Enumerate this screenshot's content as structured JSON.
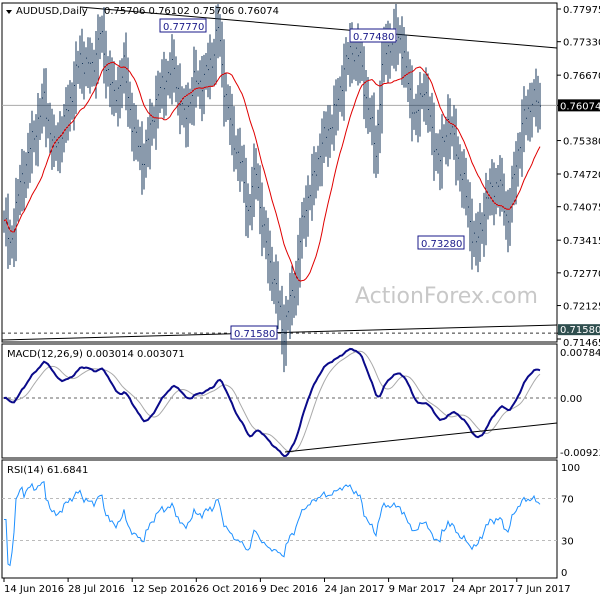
{
  "chart_data": {
    "type": "ohlc",
    "symbol": "AUDUSD,Daily",
    "ohlc_header": "0.75706 0.76102 0.75706 0.76074",
    "last_price": "0.76074",
    "y_ticks": [
      "0.77975",
      "0.77330",
      "0.76670",
      "0.76074",
      "0.75380",
      "0.74720",
      "0.74075",
      "0.73415",
      "0.72770",
      "0.72125",
      "0.71580",
      "0.71465"
    ],
    "ylim": [
      0.71465,
      0.77975
    ],
    "x_ticks": [
      "14 Jun 2016",
      "28 Jul 2016",
      "12 Sep 2016",
      "26 Oct 2016",
      "9 Dec 2016",
      "24 Jan 2017",
      "9 Mar 2017",
      "24 Apr 2017",
      "7 Jun 2017"
    ],
    "annotations": [
      "0.77770",
      "0.77480",
      "0.73280",
      "0.71580"
    ],
    "watermark": "ActionForex.com",
    "close_keypoints": [
      [
        0,
        0.738
      ],
      [
        3,
        0.733
      ],
      [
        8,
        0.745
      ],
      [
        15,
        0.755
      ],
      [
        20,
        0.762
      ],
      [
        25,
        0.752
      ],
      [
        30,
        0.757
      ],
      [
        38,
        0.77
      ],
      [
        44,
        0.768
      ],
      [
        48,
        0.775
      ],
      [
        55,
        0.762
      ],
      [
        60,
        0.768
      ],
      [
        65,
        0.755
      ],
      [
        70,
        0.75
      ],
      [
        75,
        0.76
      ],
      [
        80,
        0.766
      ],
      [
        85,
        0.768
      ],
      [
        90,
        0.758
      ],
      [
        95,
        0.765
      ],
      [
        100,
        0.766
      ],
      [
        104,
        0.77
      ],
      [
        107,
        0.776
      ],
      [
        110,
        0.765
      ],
      [
        114,
        0.755
      ],
      [
        118,
        0.75
      ],
      [
        122,
        0.74
      ],
      [
        126,
        0.748
      ],
      [
        130,
        0.735
      ],
      [
        134,
        0.728
      ],
      [
        138,
        0.72
      ],
      [
        140,
        0.7158
      ],
      [
        143,
        0.722
      ],
      [
        146,
        0.727
      ],
      [
        150,
        0.74
      ],
      [
        154,
        0.745
      ],
      [
        158,
        0.752
      ],
      [
        162,
        0.756
      ],
      [
        166,
        0.76
      ],
      [
        170,
        0.768
      ],
      [
        174,
        0.772
      ],
      [
        178,
        0.77
      ],
      [
        182,
        0.76
      ],
      [
        186,
        0.752
      ],
      [
        190,
        0.772
      ],
      [
        194,
        0.773
      ],
      [
        198,
        0.7745
      ],
      [
        202,
        0.765
      ],
      [
        206,
        0.758
      ],
      [
        210,
        0.765
      ],
      [
        214,
        0.755
      ],
      [
        218,
        0.75
      ],
      [
        222,
        0.758
      ],
      [
        226,
        0.752
      ],
      [
        230,
        0.745
      ],
      [
        234,
        0.736
      ],
      [
        236,
        0.7328
      ],
      [
        240,
        0.74
      ],
      [
        244,
        0.745
      ],
      [
        248,
        0.745
      ],
      [
        252,
        0.738
      ],
      [
        256,
        0.75
      ],
      [
        260,
        0.758
      ],
      [
        264,
        0.762
      ],
      [
        268,
        0.7607
      ]
    ],
    "moving_average_color": "#e00000",
    "macd": {
      "label": "MACD(12,26,9) 0.003014 0.003071",
      "y_ticks": [
        "0.007848",
        "0.00",
        "-0.00923"
      ],
      "ylim": [
        -0.00923,
        0.007848
      ]
    },
    "rsi": {
      "label": "RSI(14) 61.6841",
      "y_ticks": [
        "100",
        "70",
        "30",
        "0"
      ],
      "ylim": [
        0,
        100
      ],
      "levels": [
        70,
        30
      ]
    }
  }
}
